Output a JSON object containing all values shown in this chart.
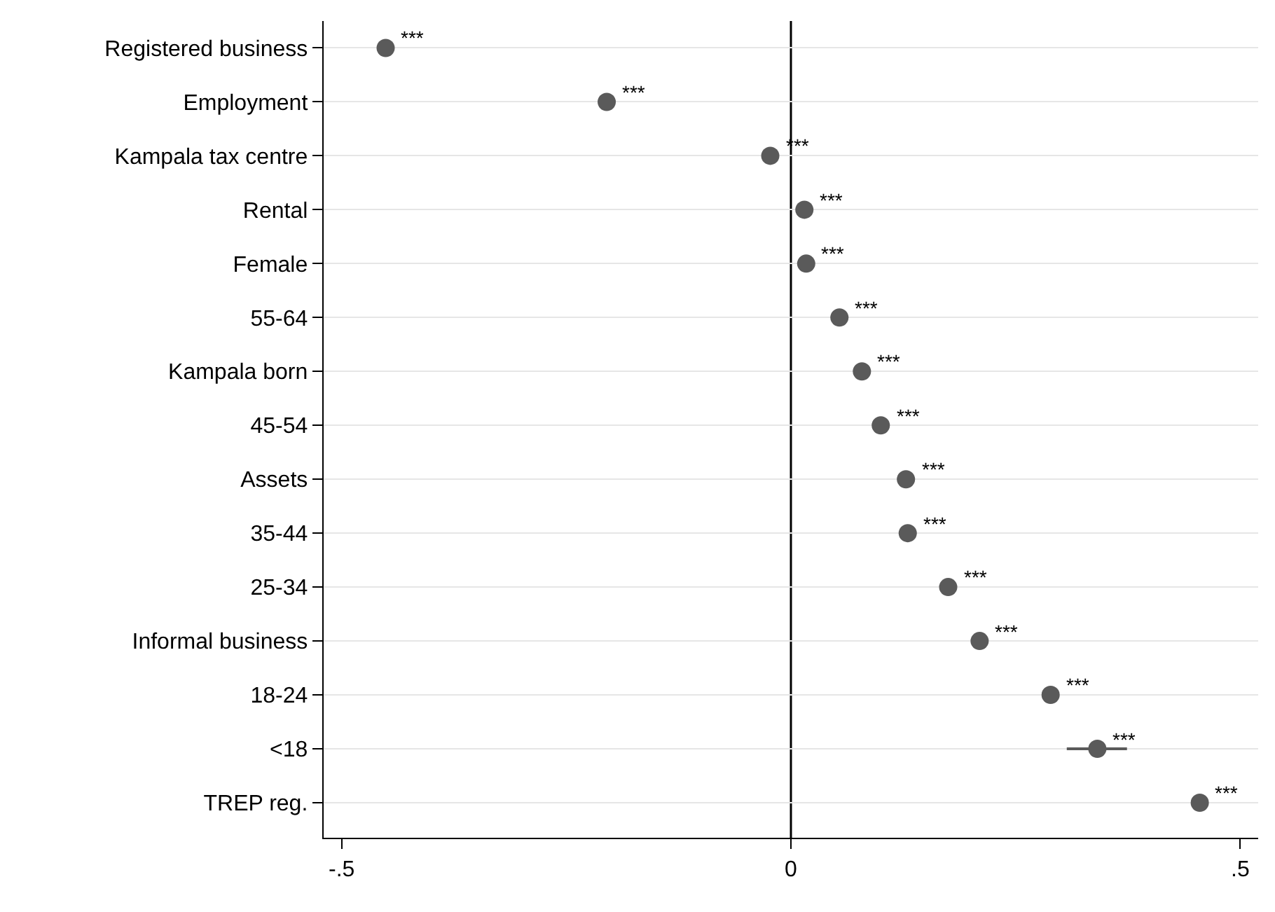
{
  "chart_data": {
    "type": "scatter",
    "categories": [
      "Registered business",
      "Employment",
      "Kampala tax centre",
      "Rental",
      "Female",
      "55-64",
      "Kampala born",
      "45-54",
      "Assets",
      "35-44",
      "25-34",
      "Informal business",
      "18-24",
      "<18",
      "TREP reg."
    ],
    "orientation": "horizontal",
    "values": [
      -0.451,
      -0.205,
      -0.023,
      0.015,
      0.017,
      0.054,
      0.079,
      0.1,
      0.128,
      0.13,
      0.175,
      0.21,
      0.289,
      0.341,
      0.455
    ],
    "errors": [
      null,
      null,
      null,
      null,
      null,
      null,
      null,
      null,
      null,
      null,
      null,
      null,
      null,
      [
        0.307,
        0.374
      ],
      null
    ],
    "color": "#5a5a5a",
    "marker": "circle",
    "xlim": [
      -0.52,
      0.52
    ],
    "xticks": [
      {
        "value": -0.5,
        "label": "-.5"
      },
      0,
      {
        "value": 0.5,
        "label": ".5"
      }
    ],
    "grid": "y",
    "legend": false,
    "ref_lines": [
      {
        "axis": "x",
        "value": 0,
        "color": "#000000"
      }
    ],
    "annotations": [
      {
        "text": "***",
        "x": -0.451,
        "y": "Registered business"
      },
      {
        "text": "***",
        "x": -0.205,
        "y": "Employment"
      },
      {
        "text": "***",
        "x": -0.023,
        "y": "Kampala tax centre"
      },
      {
        "text": "***",
        "x": 0.015,
        "y": "Rental"
      },
      {
        "text": "***",
        "x": 0.017,
        "y": "Female"
      },
      {
        "text": "***",
        "x": 0.054,
        "y": "55-64"
      },
      {
        "text": "***",
        "x": 0.079,
        "y": "Kampala born"
      },
      {
        "text": "***",
        "x": 0.1,
        "y": "45-54"
      },
      {
        "text": "***",
        "x": 0.128,
        "y": "Assets"
      },
      {
        "text": "***",
        "x": 0.13,
        "y": "35-44"
      },
      {
        "text": "***",
        "x": 0.175,
        "y": "25-34"
      },
      {
        "text": "***",
        "x": 0.21,
        "y": "Informal business"
      },
      {
        "text": "***",
        "x": 0.289,
        "y": "18-24"
      },
      {
        "text": "***",
        "x": 0.341,
        "y": "<18"
      },
      {
        "text": "***",
        "x": 0.455,
        "y": "TREP reg."
      }
    ]
  }
}
